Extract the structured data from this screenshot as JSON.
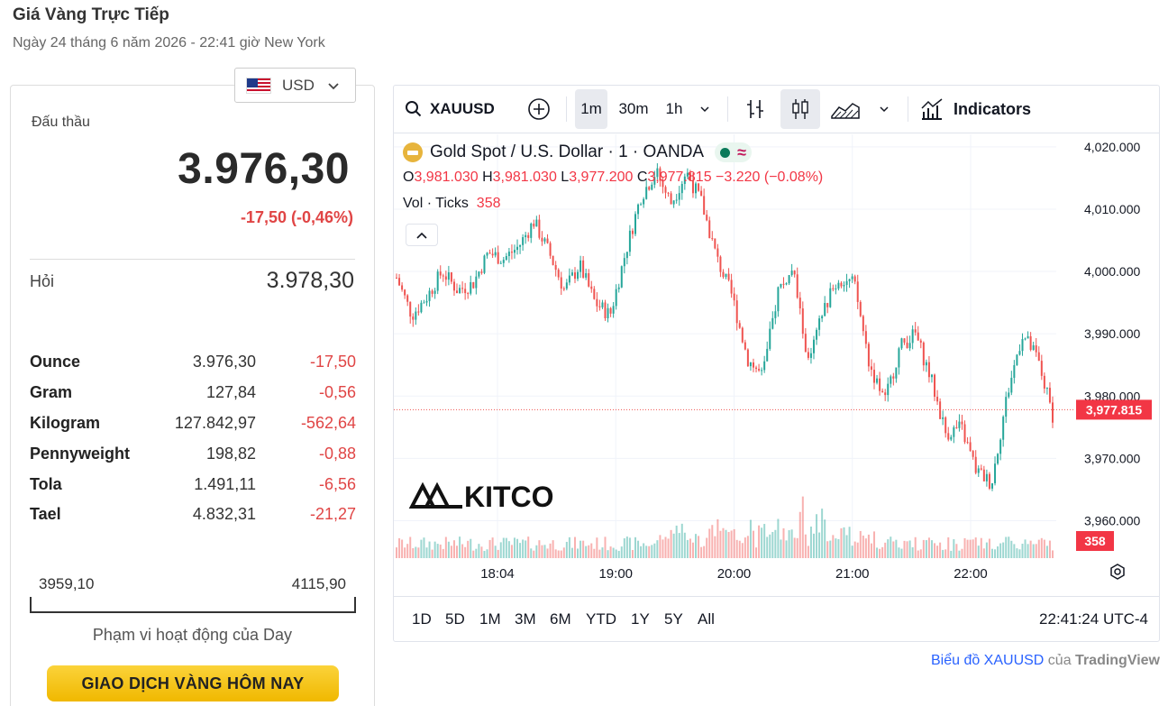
{
  "page": {
    "title": "Giá Vàng Trực Tiếp",
    "datetime": "Ngày 24 tháng 6 năm 2026 - 22:41 giờ New York"
  },
  "currency": {
    "selected": "USD"
  },
  "quote": {
    "bid_label": "Đấu thầu",
    "bid": "3.976,30",
    "change": "-17,50 (-0,46%)",
    "ask_label": "Hỏi",
    "ask": "3.978,30"
  },
  "units": [
    {
      "name": "Ounce",
      "value": "3.976,30",
      "change": "-17,50"
    },
    {
      "name": "Gram",
      "value": "127,84",
      "change": "-0,56"
    },
    {
      "name": "Kilogram",
      "value": "127.842,97",
      "change": "-562,64"
    },
    {
      "name": "Pennyweight",
      "value": "198,82",
      "change": "-0,88"
    },
    {
      "name": "Tola",
      "value": "1.491,11",
      "change": "-6,56"
    },
    {
      "name": "Tael",
      "value": "4.832,31",
      "change": "-21,27"
    }
  ],
  "day_range": {
    "low": "3959,10",
    "high": "4115,90",
    "label": "Phạm vi hoạt động của Day"
  },
  "trade_button": "GIAO DỊCH VÀNG HÔM NAY",
  "toolbar": {
    "symbol": "XAUUSD",
    "intervals": [
      "1m",
      "30m",
      "1h"
    ],
    "active_interval": "1m",
    "indicators": "Indicators"
  },
  "legend": {
    "title": "Gold Spot / U.S. Dollar · 1 · OANDA",
    "o_label": "O",
    "o": "3,981.030",
    "h_label": "H",
    "h": "3,981.030",
    "l_label": "L",
    "l": "3,977.200",
    "c_label": "C",
    "c": "3,977.815",
    "chg": "−3.220 (−0.08%)",
    "vol_label": "Vol · Ticks",
    "vol": "358"
  },
  "watermark": "KITCO",
  "range_buttons": [
    "1D",
    "5D",
    "1M",
    "3M",
    "6M",
    "YTD",
    "1Y",
    "5Y",
    "All"
  ],
  "clock": "22:41:24 UTC-4",
  "footer": {
    "link": "Biểu đồ XAUUSD",
    "mid": " của ",
    "brand": "TradingView"
  },
  "colors": {
    "up": "#26a69a",
    "down": "#ef5350",
    "accent_red": "#e04545",
    "button_gold": "#f7c520"
  },
  "chart_data": {
    "type": "candlestick",
    "symbol": "XAUUSD",
    "interval": "1m",
    "y_ticks": [
      "4,020.000",
      "4,010.000",
      "4,000.000",
      "3,990.000",
      "3,980.000",
      "3,970.000",
      "3,960.000"
    ],
    "x_ticks": [
      "18:04",
      "19:00",
      "20:00",
      "21:00",
      "22:00"
    ],
    "ylim": [
      3954,
      4022
    ],
    "last_price": "3,977.815",
    "last_volume": "358",
    "close_path": [
      3999,
      3993,
      3996,
      4000,
      3997,
      3998,
      4003,
      4002,
      4004,
      4008,
      4003,
      3997,
      4001,
      3995,
      3993,
      4003,
      4012,
      4016,
      4011,
      4016,
      4011,
      4002,
      3996,
      3986,
      3983,
      3997,
      4000,
      3985,
      3994,
      3999,
      3998,
      3985,
      3979,
      3988,
      3990,
      3983,
      3974,
      3975,
      3968,
      3966,
      3980,
      3990,
      3986,
      3977
    ]
  }
}
